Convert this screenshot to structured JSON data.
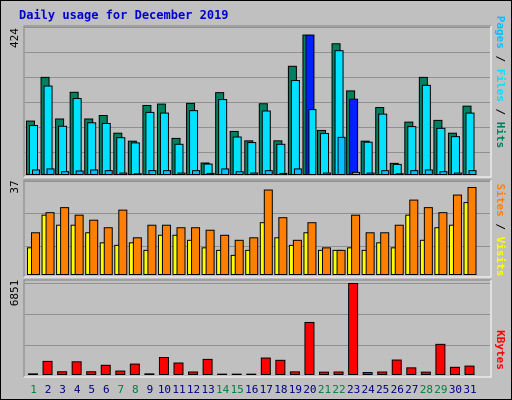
{
  "title": "Daily usage for December 2019",
  "colors": {
    "hits": "#008060",
    "files": "#00e0ff",
    "pages": "#00c0ff",
    "sites": "#ff8000",
    "visits": "#ffff00",
    "kbytes": "#ff0000",
    "highlight": "#0020ff",
    "panel_bg": "#c0c0c0",
    "weekday_label": "#000080",
    "weekend_label": "#008040"
  },
  "chart_data": [
    {
      "type": "bar",
      "name": "hits-files-pages",
      "ymax_label": "424",
      "ylim": [
        0,
        424
      ],
      "legend": [
        "Pages",
        "Files",
        "Hits"
      ],
      "grid": true,
      "categories": [
        "1",
        "2",
        "3",
        "4",
        "5",
        "6",
        "7",
        "8",
        "9",
        "10",
        "11",
        "12",
        "13",
        "14",
        "15",
        "16",
        "17",
        "18",
        "19",
        "20",
        "21",
        "22",
        "23",
        "24",
        "25",
        "26",
        "27",
        "28",
        "29",
        "30",
        "31"
      ],
      "series": [
        {
          "name": "Hits",
          "values": [
            157,
            283,
            163,
            240,
            163,
            173,
            122,
            99,
            202,
            206,
            107,
            208,
            36,
            239,
            127,
            100,
            207,
            100,
            315,
            405,
            130,
            380,
            244,
            99,
            196,
            35,
            154,
            283,
            159,
            122,
            200
          ]
        },
        {
          "name": "Files",
          "values": [
            144,
            258,
            142,
            222,
            152,
            150,
            109,
            94,
            182,
            180,
            90,
            187,
            33,
            219,
            111,
            95,
            186,
            90,
            274,
            405,
            121,
            360,
            220,
            96,
            177,
            32,
            141,
            260,
            136,
            112,
            180
          ]
        },
        {
          "name": "Pages",
          "values": [
            16,
            19,
            11,
            13,
            16,
            14,
            7,
            5,
            14,
            14,
            7,
            14,
            6,
            19,
            11,
            7,
            14,
            6,
            19,
            190,
            7,
            110,
            9,
            7,
            14,
            5,
            14,
            16,
            11,
            7,
            14
          ]
        }
      ]
    },
    {
      "type": "bar",
      "name": "visits-sites",
      "ymax_label": "37",
      "ylim": [
        0,
        37
      ],
      "legend": [
        "Sites",
        "Visits"
      ],
      "grid": true,
      "categories": [
        "1",
        "2",
        "3",
        "4",
        "5",
        "6",
        "7",
        "8",
        "9",
        "10",
        "11",
        "12",
        "13",
        "14",
        "15",
        "16",
        "17",
        "18",
        "19",
        "20",
        "21",
        "22",
        "23",
        "24",
        "25",
        "26",
        "27",
        "28",
        "29",
        "30",
        "31"
      ],
      "series": [
        {
          "name": "Visits",
          "values": [
            11,
            24,
            20,
            20,
            17,
            13,
            12,
            13,
            10,
            16,
            16,
            14,
            11,
            10,
            8,
            10,
            21,
            15,
            12,
            17,
            10,
            10,
            11,
            10,
            13,
            11,
            24,
            14,
            19,
            20,
            29
          ]
        },
        {
          "name": "Sites",
          "values": [
            17,
            25,
            27,
            24,
            22,
            19,
            26,
            15,
            20,
            20,
            19,
            19,
            18,
            16,
            14,
            15,
            34,
            23,
            14,
            21,
            11,
            10,
            24,
            17,
            17,
            20,
            30,
            27,
            25,
            32,
            35
          ]
        }
      ]
    },
    {
      "type": "bar",
      "name": "kbytes",
      "ymax_label": "6851",
      "ylim": [
        0,
        6851
      ],
      "legend": [
        "KBytes"
      ],
      "grid": true,
      "categories": [
        "1",
        "2",
        "3",
        "4",
        "5",
        "6",
        "7",
        "8",
        "9",
        "10",
        "11",
        "12",
        "13",
        "14",
        "15",
        "16",
        "17",
        "18",
        "19",
        "20",
        "21",
        "22",
        "23",
        "24",
        "25",
        "26",
        "27",
        "28",
        "29",
        "30",
        "31"
      ],
      "series": [
        {
          "name": "KBytes",
          "values": [
            120,
            1050,
            280,
            1020,
            280,
            760,
            330,
            850,
            120,
            1340,
            930,
            260,
            1200,
            100,
            100,
            100,
            1300,
            1130,
            270,
            3950,
            250,
            260,
            6851,
            220,
            260,
            1150,
            570,
            250,
            2320,
            610,
            700
          ]
        }
      ]
    }
  ],
  "x_labels": [
    "1",
    "2",
    "3",
    "4",
    "5",
    "6",
    "7",
    "8",
    "9",
    "10",
    "11",
    "12",
    "13",
    "14",
    "15",
    "16",
    "17",
    "18",
    "19",
    "20",
    "21",
    "22",
    "23",
    "24",
    "25",
    "26",
    "27",
    "28",
    "29",
    "30",
    "31"
  ],
  "weekend_days": [
    "1",
    "7",
    "8",
    "14",
    "15",
    "21",
    "22",
    "28",
    "29"
  ]
}
